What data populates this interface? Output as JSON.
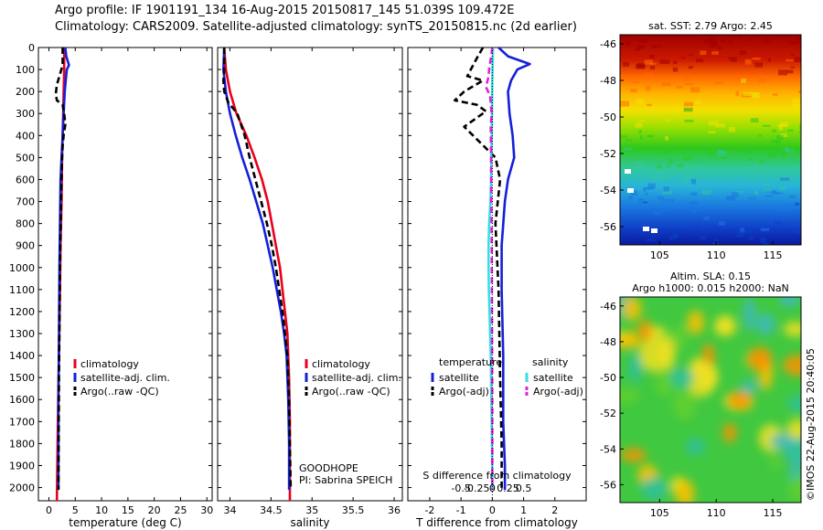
{
  "header": {
    "line1": "Argo profile: IF 1901191_134 16-Aug-2015 20150817_145 51.039S 109.472E",
    "line2": "Climatology: CARS2009. Satellite-adjusted climatology: synTS_20150815.nc (2d earlier)"
  },
  "stamp": "©IMOS 22-Aug-2015 20:40:05",
  "colors": {
    "climatology": "#e8001c",
    "satellite": "#1420d8",
    "argo": "#000000",
    "satellite_salinity": "#33e0e0",
    "argo_salinity": "#e020e0"
  },
  "chart_data": [
    {
      "type": "line",
      "panel": "temperature",
      "xlabel": "temperature (deg C)",
      "xlim": [
        -2,
        31
      ],
      "xticks": [
        0,
        5,
        10,
        15,
        20,
        25,
        30
      ],
      "xtick_labels": [
        "0",
        "5",
        "10",
        "15",
        "20",
        "25",
        "30"
      ],
      "ylim": [
        0,
        2060
      ],
      "yticks": [
        0,
        100,
        200,
        300,
        400,
        500,
        600,
        700,
        800,
        900,
        1000,
        1100,
        1200,
        1300,
        1400,
        1500,
        1600,
        1700,
        1800,
        1900,
        2000
      ],
      "ytick_labels": [
        "0",
        "100",
        "200",
        "300",
        "400",
        "500",
        "600",
        "700",
        "800",
        "900",
        "1000",
        "1100",
        "1200",
        "1300",
        "1400",
        "1500",
        "1600",
        "1700",
        "1800",
        "1900",
        "2000"
      ],
      "legend": [
        "climatology",
        "satellite-adj. clim.",
        "Argo(..raw -QC)"
      ],
      "series": [
        {
          "role": "climatology",
          "x": [
            2.9,
            2.9,
            2.8,
            2.7,
            2.6,
            2.5,
            2.4,
            2.2,
            2.1,
            1.9,
            1.7,
            1.5
          ],
          "y": [
            0,
            100,
            200,
            300,
            400,
            500,
            700,
            900,
            1100,
            1400,
            1700,
            2060
          ]
        },
        {
          "role": "satellite",
          "x": [
            3.1,
            3.3,
            3.8,
            3.4,
            3.2,
            3.0,
            2.8,
            2.6,
            2.4,
            2.2,
            2.1,
            2.0,
            1.9,
            1.8,
            1.8
          ],
          "y": [
            0,
            40,
            80,
            100,
            150,
            200,
            300,
            400,
            500,
            600,
            800,
            1000,
            1300,
            1600,
            2010
          ]
        },
        {
          "role": "argo",
          "x": [
            2.6,
            2.6,
            2.0,
            1.5,
            1.3,
            1.5,
            2.6,
            2.9,
            3.1,
            2.8,
            2.6,
            2.5,
            2.3,
            2.1,
            1.9,
            1.8
          ],
          "y": [
            0,
            80,
            130,
            170,
            210,
            240,
            260,
            300,
            350,
            400,
            450,
            500,
            700,
            1000,
            1500,
            2010
          ]
        }
      ]
    },
    {
      "type": "line",
      "panel": "salinity",
      "xlabel": "salinity",
      "xlim": [
        33.85,
        36.1
      ],
      "xticks": [
        34,
        34.5,
        35,
        35.5,
        36
      ],
      "xtick_labels": [
        "34",
        "34.5",
        "35",
        "35.5",
        "36"
      ],
      "ylim": [
        0,
        2060
      ],
      "legend": [
        "climatology",
        "satellite-adj. clim.",
        "Argo(..raw -QC)"
      ],
      "annotations": [
        "GOODHOPE",
        "PI: Sabrina SPEICH"
      ],
      "series": [
        {
          "role": "climatology",
          "x": [
            33.93,
            33.95,
            34.0,
            34.08,
            34.2,
            34.3,
            34.39,
            34.46,
            34.51,
            34.56,
            34.61,
            34.64,
            34.67,
            34.7,
            34.72,
            34.73,
            34.73,
            34.73
          ],
          "y": [
            0,
            100,
            200,
            300,
            400,
            500,
            600,
            700,
            800,
            900,
            1000,
            1100,
            1200,
            1300,
            1500,
            1700,
            1900,
            2060
          ]
        },
        {
          "role": "satellite",
          "x": [
            33.93,
            33.92,
            33.95,
            34.0,
            34.07,
            34.15,
            34.24,
            34.32,
            34.4,
            34.46,
            34.52,
            34.57,
            34.62,
            34.66,
            34.69,
            34.71,
            34.72,
            34.72
          ],
          "y": [
            0,
            100,
            200,
            300,
            400,
            500,
            600,
            700,
            800,
            900,
            1000,
            1100,
            1200,
            1300,
            1400,
            1600,
            1800,
            2010
          ]
        },
        {
          "role": "argo",
          "x": [
            33.93,
            33.93,
            33.92,
            33.93,
            33.98,
            34.09,
            34.18,
            34.24,
            34.31,
            34.38,
            34.45,
            34.51,
            34.56,
            34.6,
            34.64,
            34.67,
            34.7,
            34.72,
            34.73,
            34.74
          ],
          "y": [
            0,
            100,
            150,
            200,
            250,
            300,
            400,
            500,
            600,
            700,
            800,
            900,
            1000,
            1100,
            1200,
            1300,
            1400,
            1600,
            1800,
            2010
          ]
        }
      ]
    },
    {
      "type": "line",
      "panel": "difference",
      "xlabel": "T difference from climatology",
      "xlim": [
        -2.7,
        3.0
      ],
      "xticks": [
        -2,
        -1,
        0,
        1,
        2
      ],
      "xtick_labels": [
        "-2",
        "-1",
        "0",
        "1",
        "2"
      ],
      "top_xlabel": "S difference from climatology",
      "top_xticks": [
        -0.5,
        -0.25,
        0,
        0.25,
        0.5
      ],
      "top_xtick_labels": [
        "-0.5",
        "-0.25",
        "0",
        "0.25",
        "0.5"
      ],
      "ylim": [
        0,
        2060
      ],
      "legend": {
        "temperature_title": "temperature",
        "salinity_title": "salinity",
        "temperature_items": [
          "satellite",
          "Argo(-adj)"
        ],
        "salinity_items": [
          "satellite",
          "Argo(-adj)"
        ]
      },
      "series": [
        {
          "role": "temperature-satellite",
          "x": [
            0.2,
            0.5,
            1.2,
            0.8,
            0.6,
            0.5,
            0.55,
            0.65,
            0.7,
            0.5,
            0.4,
            0.3,
            0.3,
            0.35,
            0.35,
            0.4,
            0.4
          ],
          "y": [
            0,
            40,
            75,
            100,
            150,
            200,
            300,
            400,
            500,
            600,
            700,
            900,
            1100,
            1400,
            1700,
            1900,
            2010
          ]
        },
        {
          "role": "temperature-argo",
          "x": [
            -0.3,
            -0.5,
            -0.8,
            -0.3,
            -0.9,
            -1.2,
            -0.5,
            -0.2,
            -0.5,
            -0.9,
            0.1,
            0.25,
            0.1,
            0.2,
            0.25,
            0.3,
            0.3
          ],
          "y": [
            0,
            50,
            130,
            150,
            200,
            240,
            260,
            290,
            320,
            360,
            500,
            600,
            800,
            1100,
            1500,
            1800,
            2010
          ]
        },
        {
          "role": "salinity-satellite",
          "x": [
            0.02,
            0.0,
            -0.01,
            -0.02,
            -0.03,
            -0.04,
            -0.06,
            -0.1,
            -0.12,
            -0.12,
            -0.11,
            -0.09,
            -0.07,
            -0.05,
            -0.03,
            -0.01,
            0.0
          ],
          "y": [
            0,
            150,
            300,
            400,
            500,
            600,
            700,
            800,
            900,
            1000,
            1100,
            1200,
            1300,
            1400,
            1600,
            1800,
            2010
          ]
        },
        {
          "role": "salinity-argo",
          "x": [
            0.0,
            -0.05,
            -0.1,
            -0.12,
            -0.2,
            -0.07,
            -0.05,
            -0.02,
            -0.05,
            -0.04,
            -0.03,
            -0.02,
            -0.01,
            0.0,
            0.0
          ],
          "y": [
            0,
            50,
            100,
            130,
            180,
            220,
            260,
            300,
            350,
            500,
            700,
            900,
            1200,
            1600,
            2010
          ]
        }
      ]
    },
    {
      "type": "heatmap",
      "panel": "sst-map",
      "title": "sat. SST: 2.79 Argo: 2.45",
      "xticks": [
        105,
        110,
        115
      ],
      "xtick_labels": [
        "105",
        "110",
        "115"
      ],
      "yticks": [
        -46,
        -48,
        -50,
        -52,
        -54,
        -56
      ],
      "ytick_labels": [
        "-46",
        "-48",
        "-50",
        "-52",
        "-54",
        "-56"
      ]
    },
    {
      "type": "heatmap",
      "panel": "sla-map",
      "title": "Altim. SLA: 0.15",
      "subtitle": "Argo h1000: 0.015 h2000: NaN",
      "xticks": [
        105,
        110,
        115
      ],
      "xtick_labels": [
        "105",
        "110",
        "115"
      ],
      "yticks": [
        -46,
        -48,
        -50,
        -52,
        -54,
        -56
      ],
      "ytick_labels": [
        "-46",
        "-48",
        "-50",
        "-52",
        "-54",
        "-56"
      ]
    }
  ]
}
